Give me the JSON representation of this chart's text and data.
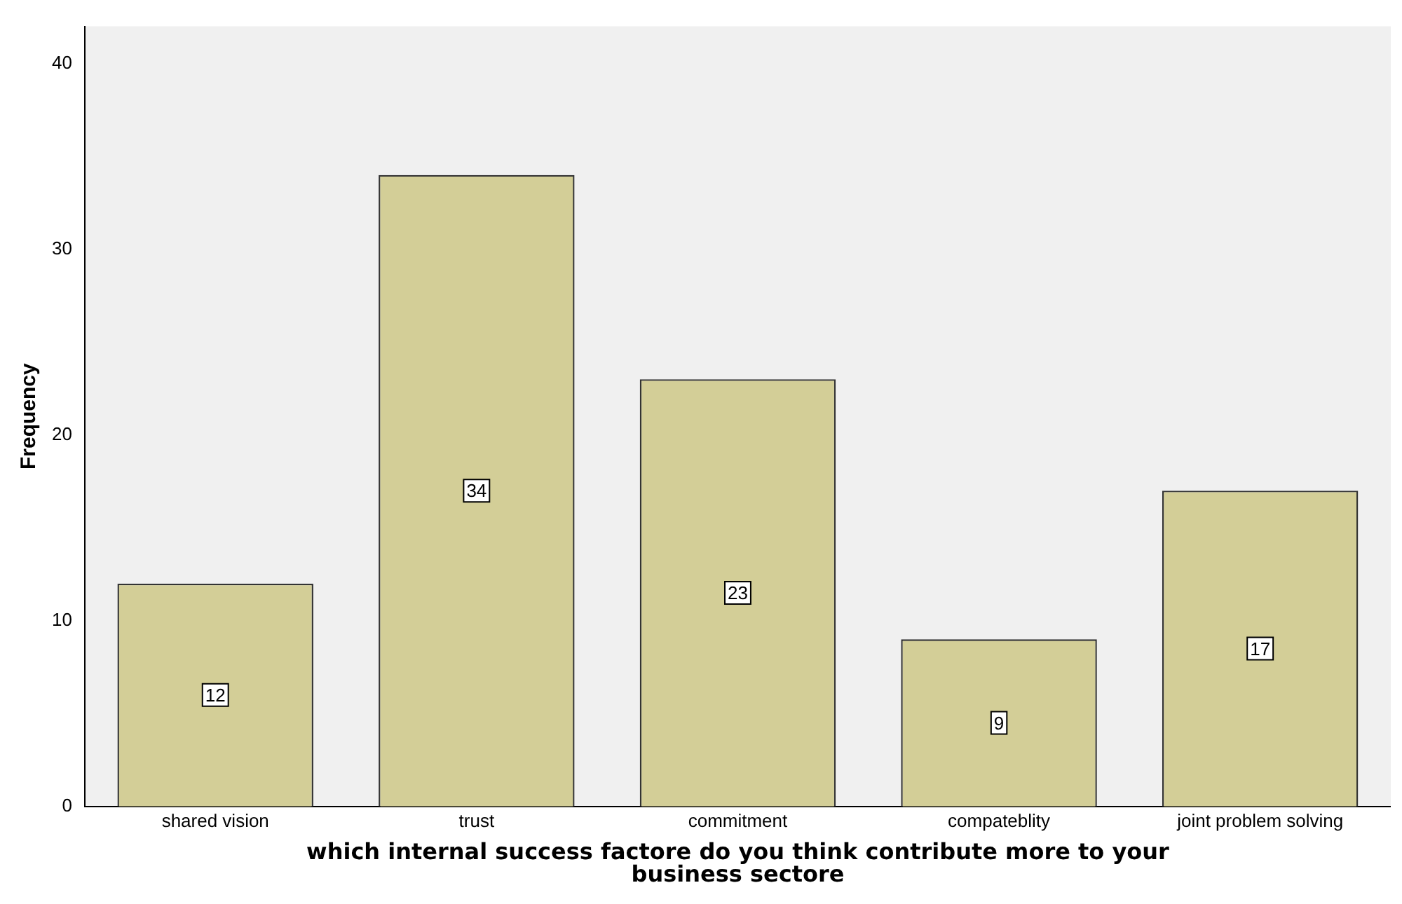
{
  "chart_data": {
    "type": "bar",
    "xlabel": "which internal success factore do you think contribute more to your business sectore",
    "ylabel": "Frequency",
    "categories": [
      "shared vision",
      "trust",
      "commitment",
      "compateblity",
      "joint problem solving"
    ],
    "values": [
      12,
      34,
      23,
      9,
      17
    ],
    "color": "#d3ce97",
    "ylim": [
      0,
      42
    ],
    "yticks": [
      0,
      10,
      20,
      30,
      40
    ],
    "grid": false,
    "legend": false,
    "data_labels": true
  }
}
